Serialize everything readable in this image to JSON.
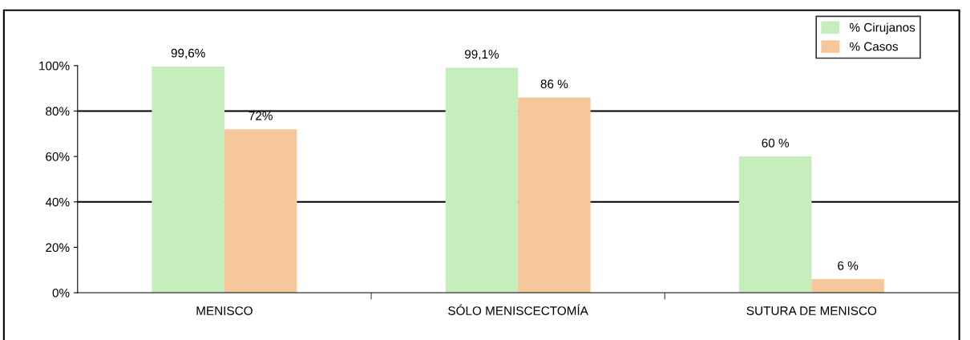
{
  "chart_data": {
    "type": "bar",
    "categories": [
      "MENISCO",
      "SÓLO MENISCECTOMÍA",
      "SUTURA DE MENISCO"
    ],
    "series": [
      {
        "name": "% Cirujanos",
        "color": "#c6eebd",
        "values": [
          99.6,
          99.1,
          60
        ],
        "value_labels": [
          "99,6%",
          "99,1%",
          "60 %"
        ]
      },
      {
        "name": "% Casos",
        "color": "#f7c79c",
        "values": [
          72,
          86,
          6
        ],
        "value_labels": [
          "72%",
          "86 %",
          "6 %"
        ]
      }
    ],
    "ylim": [
      0,
      100
    ],
    "yticks": [
      {
        "value": 0,
        "label": "0%"
      },
      {
        "value": 20,
        "label": "20%"
      },
      {
        "value": 40,
        "label": "40%"
      },
      {
        "value": 60,
        "label": "60%"
      },
      {
        "value": 80,
        "label": "80%"
      },
      {
        "value": 100,
        "label": "100%"
      }
    ],
    "ref_lines": [
      {
        "axis": "y",
        "value": 40,
        "color": "#000000"
      },
      {
        "axis": "y",
        "value": 80,
        "color": "#000000"
      }
    ],
    "legend": "top right"
  }
}
